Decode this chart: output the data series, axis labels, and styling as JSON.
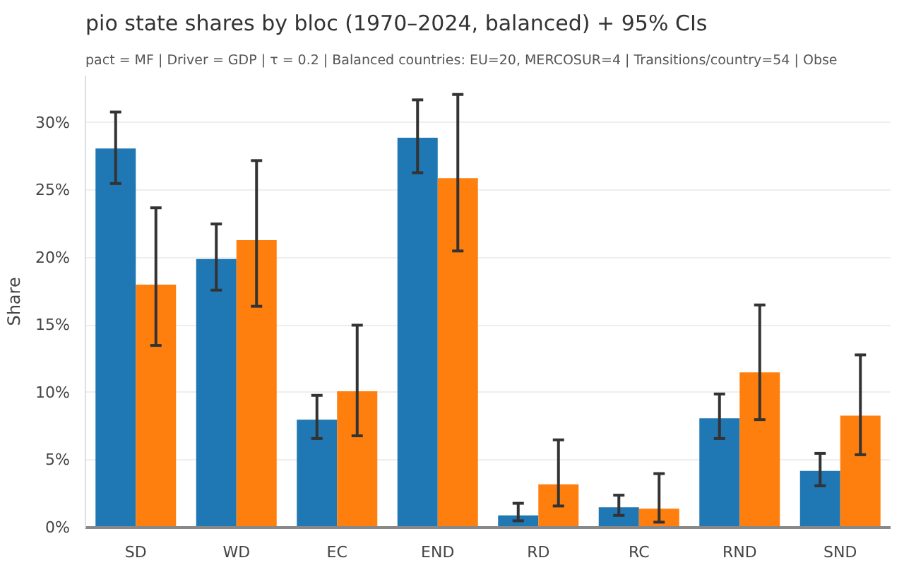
{
  "chart_data": {
    "type": "bar",
    "title": "pio state shares by bloc (1970–2024, balanced) + 95% CIs",
    "subtitle": "pact = MF | Driver = GDP | τ = 0.2 | Balanced countries: EU=20, MERCOSUR=4 | Transitions/country=54 | Obse",
    "ylabel": "Share",
    "categories": [
      "SD",
      "WD",
      "EC",
      "END",
      "RD",
      "RC",
      "RND",
      "SND"
    ],
    "series": [
      {
        "color": "#1f77b4",
        "values": [
          28.1,
          19.9,
          8.0,
          28.9,
          0.9,
          1.5,
          8.1,
          4.2
        ],
        "errors": [
          [
            25.5,
            30.8
          ],
          [
            17.6,
            22.5
          ],
          [
            6.6,
            9.8
          ],
          [
            26.3,
            31.7
          ],
          [
            0.5,
            1.8
          ],
          [
            0.9,
            2.4
          ],
          [
            6.6,
            9.9
          ],
          [
            3.1,
            5.5
          ]
        ]
      },
      {
        "color": "#ff7f0e",
        "values": [
          18.0,
          21.3,
          10.1,
          25.9,
          3.2,
          1.4,
          11.5,
          8.3
        ],
        "errors": [
          [
            13.5,
            23.7
          ],
          [
            16.4,
            27.2
          ],
          [
            6.8,
            15.0
          ],
          [
            20.5,
            32.1
          ],
          [
            1.6,
            6.5
          ],
          [
            0.4,
            4.0
          ],
          [
            8.0,
            16.5
          ],
          [
            5.4,
            12.8
          ]
        ]
      }
    ],
    "ylim": [
      0,
      33.5
    ],
    "yticks": [
      {
        "value": 0,
        "label": "0%"
      },
      {
        "value": 5,
        "label": "5%"
      },
      {
        "value": 10,
        "label": "10%"
      },
      {
        "value": 15,
        "label": "15%"
      },
      {
        "value": 20,
        "label": "20%"
      },
      {
        "value": 25,
        "label": "25%"
      },
      {
        "value": 30,
        "label": "30%"
      }
    ],
    "grid": "y"
  }
}
